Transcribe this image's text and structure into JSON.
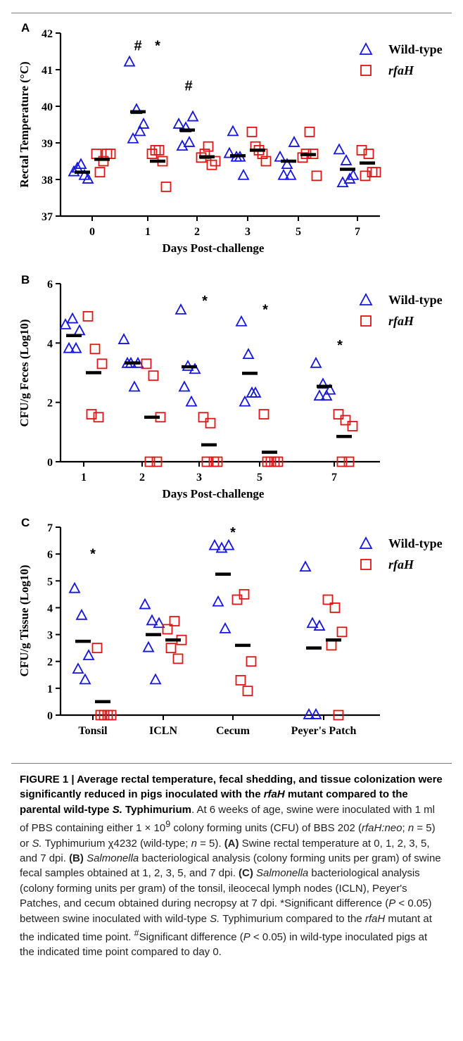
{
  "legend": {
    "wildtype": "Wild-type",
    "mutant": "rfaH"
  },
  "colors": {
    "wildtype": "#1515e0",
    "mutant": "#e01515",
    "median": "#000000"
  },
  "chart_data": [
    {
      "panel": "A",
      "type": "scatter",
      "xlabel": "Days Post-challenge",
      "ylabel": "Rectal Temperature (°C)",
      "ylim": [
        37,
        42
      ],
      "yticks": [
        37,
        38,
        39,
        40,
        41,
        42
      ],
      "categories": [
        "0",
        "1",
        "2",
        "3",
        "5",
        "7"
      ],
      "series": [
        {
          "name": "Wild-type",
          "marker": "triangle",
          "values": [
            [
              38.2,
              38.4,
              38.0,
              38.3,
              38.1
            ],
            [
              41.2,
              39.9,
              39.5,
              39.1,
              39.3
            ],
            [
              39.5,
              39.4,
              39.7,
              38.9,
              39.0
            ],
            [
              38.7,
              38.6,
              38.1,
              39.3,
              38.6
            ],
            [
              38.6,
              38.4,
              39.0,
              38.1,
              38.1
            ],
            [
              38.8,
              38.5,
              38.1,
              37.9,
              38.0
            ]
          ],
          "medians": [
            38.2,
            39.85,
            39.35,
            38.65,
            38.5,
            38.28
          ]
        },
        {
          "name": "rfaH",
          "marker": "square",
          "values": [
            [
              38.7,
              38.5,
              38.7,
              38.2,
              38.7
            ],
            [
              38.7,
              38.8,
              37.8,
              38.8,
              38.5
            ],
            [
              38.6,
              38.9,
              38.5,
              38.7,
              38.4
            ],
            [
              39.3,
              38.8,
              38.5,
              38.9,
              38.7
            ],
            [
              38.6,
              39.3,
              38.1,
              38.7,
              38.7
            ],
            [
              38.8,
              38.7,
              38.2,
              38.1,
              38.2
            ]
          ],
          "medians": [
            38.55,
            38.5,
            38.62,
            38.8,
            38.68,
            38.45
          ]
        }
      ],
      "annotations": [
        {
          "category": "1",
          "text": "#",
          "y": 41.8,
          "offset": -14
        },
        {
          "category": "1",
          "text": "*",
          "y": 41.8,
          "offset": 14
        },
        {
          "category": "2",
          "text": "#",
          "y": 40.7,
          "offset": -12
        }
      ]
    },
    {
      "panel": "B",
      "type": "scatter",
      "xlabel": "Days Post-challenge",
      "ylabel": "CFU/g Feces (Log10)",
      "ylim": [
        0,
        6
      ],
      "yticks": [
        0,
        2,
        4,
        6
      ],
      "categories": [
        "1",
        "2",
        "3",
        "5",
        "7"
      ],
      "series": [
        {
          "name": "Wild-type",
          "marker": "triangle",
          "values": [
            [
              4.6,
              4.8,
              4.4,
              3.8,
              3.8
            ],
            [
              4.1,
              3.3,
              3.3,
              3.3,
              2.5
            ],
            [
              5.1,
              3.2,
              3.1,
              2.5,
              2.0
            ],
            [
              4.7,
              3.6,
              2.3,
              2.0,
              2.3
            ],
            [
              3.3,
              2.6,
              2.4,
              2.2,
              2.2
            ]
          ],
          "medians": [
            4.25,
            3.33,
            3.2,
            2.98,
            2.54
          ]
        },
        {
          "name": "rfaH",
          "marker": "square",
          "values": [
            [
              4.9,
              3.8,
              3.3,
              1.6,
              1.5
            ],
            [
              3.3,
              2.9,
              1.5,
              0.0,
              0.0
            ],
            [
              1.5,
              1.3,
              0.0,
              0.0,
              0.0
            ],
            [
              1.6,
              0.0,
              0.0,
              0.0,
              0.0
            ],
            [
              1.6,
              1.4,
              1.2,
              0.0,
              0.0
            ]
          ],
          "medians": [
            3.0,
            1.5,
            0.57,
            0.32,
            0.85
          ]
        }
      ],
      "annotations": [
        {
          "category": "3",
          "text": "*",
          "y": 5.6,
          "offset": 8
        },
        {
          "category": "5",
          "text": "*",
          "y": 5.3,
          "offset": 8
        },
        {
          "category": "7",
          "text": "*",
          "y": 4.1,
          "offset": 8
        }
      ]
    },
    {
      "panel": "C",
      "type": "scatter",
      "xlabel": "Tissue",
      "ylabel": "CFU/g Tissue (Log10)",
      "ylim": [
        0,
        7
      ],
      "yticks": [
        0,
        1,
        2,
        3,
        4,
        5,
        6,
        7
      ],
      "categories": [
        "Tonsil",
        "ICLN",
        "Cecum",
        "Peyer's Patch"
      ],
      "series": [
        {
          "name": "Wild-type",
          "marker": "triangle",
          "values": [
            [
              4.7,
              3.7,
              2.2,
              1.7,
              1.3
            ],
            [
              4.1,
              3.5,
              3.4,
              2.5,
              1.3
            ],
            [
              6.3,
              6.2,
              6.3,
              4.2,
              3.2
            ],
            [
              5.5,
              3.4,
              3.3,
              0.0,
              0.0
            ]
          ],
          "medians": [
            2.75,
            3.0,
            5.25,
            2.5
          ]
        },
        {
          "name": "rfaH",
          "marker": "square",
          "values": [
            [
              2.5,
              0.0,
              0.0,
              0.0,
              0.0
            ],
            [
              3.2,
              3.5,
              2.8,
              2.5,
              2.1
            ],
            [
              4.3,
              4.5,
              2.0,
              1.3,
              0.9
            ],
            [
              4.3,
              4.0,
              3.1,
              2.6,
              0.0
            ]
          ],
          "medians": [
            0.5,
            2.8,
            2.6,
            2.8
          ]
        }
      ],
      "annotations": [
        {
          "category": "Tonsil",
          "text": "*",
          "y": 6.2,
          "offset": 0
        },
        {
          "category": "Cecum",
          "text": "*",
          "y": 7.0,
          "offset": 0
        }
      ]
    }
  ],
  "caption": {
    "head_1": "FIGURE 1 | Average rectal temperature, fecal shedding, and tissue colonization were significantly reduced in pigs inoculated with the ",
    "head_it": "rfaH",
    "head_2": " mutant compared to the parental wild-type ",
    "head_it2": "S.",
    "head_3": " Typhimurium",
    "body_1": ". At 6 weeks of age, swine were inoculated with 1 ml of PBS containing either 1 × 10",
    "body_sup": "9",
    "body_2": " colony forming units (CFU) of BBS 202 (",
    "body_it1": "rfaH:neo",
    "body_3": "; ",
    "body_it2": "n",
    "body_4": " = 5) or ",
    "body_it3": "S.",
    "body_5": " Typhimurium χ4232 (wild-type; ",
    "body_it4": "n",
    "body_6": " = 5). ",
    "a_label": "(A)",
    "a_text": " Swine rectal temperature at 0, 1, 2, 3, 5, and 7 dpi. ",
    "b_label": "(B)",
    "b_it": "Salmonella",
    "b_text": " bacteriological analysis (colony forming units per gram) of swine fecal samples obtained at 1, 2, 3, 5, and 7 dpi. ",
    "c_label": "(C)",
    "c_it": "Salmonella",
    "c_text": " bacteriological analysis (colony forming units per gram) of the tonsil, ileocecal lymph nodes (ICLN), Peyer's Patches, and cecum obtained during necropsy at 7 dpi. ",
    "star_text_1": "*Significant difference (",
    "star_it": "P",
    "star_text_2": " < 0.05) between swine inoculated with wild-type ",
    "star_it2": "S.",
    "star_text_3": " Typhimurium compared to the ",
    "star_it3": "rfaH",
    "star_text_4": " mutant at the indicated time point. ",
    "hash_sup": "#",
    "hash_text_1": "Significant difference (",
    "hash_it": "P",
    "hash_text_2": " < 0.05) in wild-type inoculated pigs at the indicated time point compared to day 0."
  }
}
